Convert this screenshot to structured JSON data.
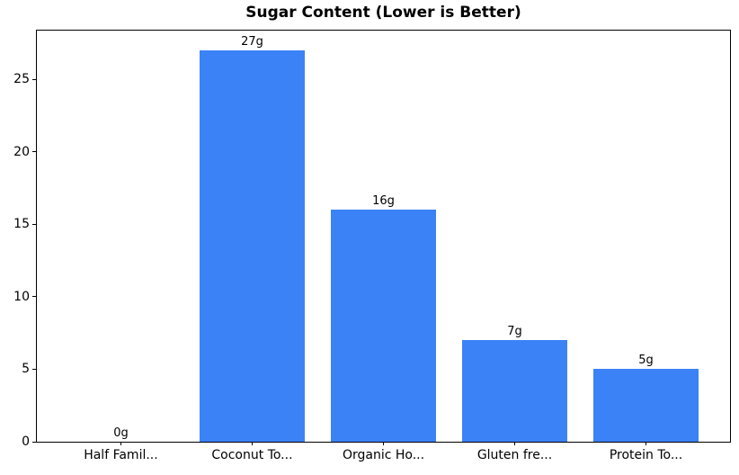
{
  "chart_data": {
    "type": "bar",
    "title": "Sugar Content (Lower is Better)",
    "categories": [
      "Half Famil...",
      "Coconut To...",
      "Organic Ho...",
      "Gluten fre...",
      "Protein To..."
    ],
    "values": [
      0,
      27,
      16,
      7,
      5
    ],
    "bar_labels": [
      "0g",
      "27g",
      "16g",
      "7g",
      "5g"
    ],
    "yticks": [
      0,
      5,
      10,
      15,
      20,
      25
    ],
    "ylim": [
      0,
      28.35
    ],
    "xlim": [
      -0.64,
      4.64
    ],
    "bar_width": 0.8,
    "bar_color": "#3b82f6",
    "axis_color": "#000000",
    "text_color": "#000000",
    "background_color": "#ffffff",
    "grid": "off",
    "legend": "none",
    "xlabel": "",
    "ylabel": ""
  }
}
